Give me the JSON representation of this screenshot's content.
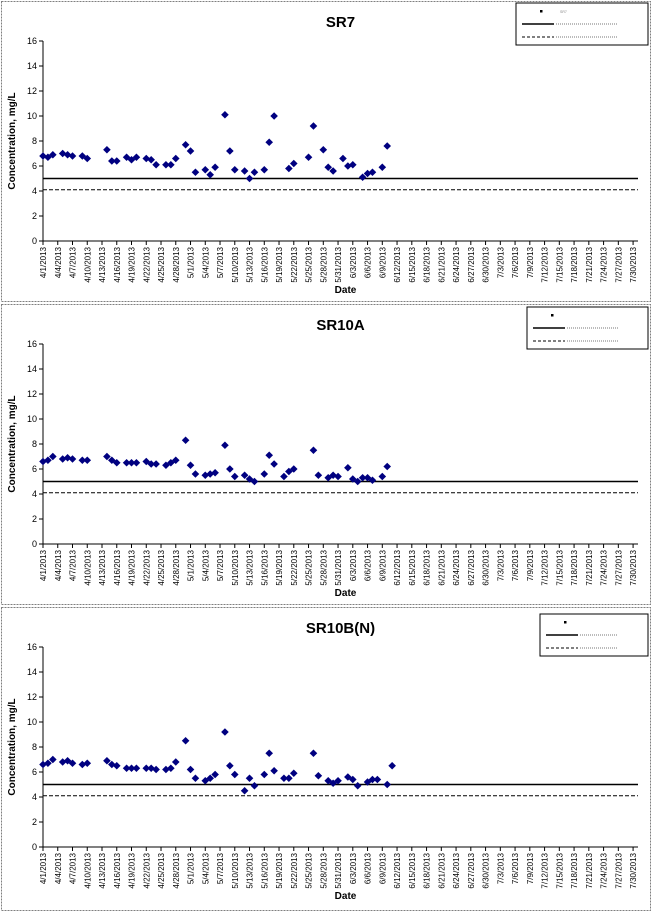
{
  "chart_data": [
    {
      "type": "scatter",
      "title": "SR7",
      "xlabel": "Date",
      "ylabel": "Concentration, mg/L",
      "ylim": [
        0,
        16
      ],
      "yticks": [
        "0",
        "2",
        "4",
        "6",
        "8",
        "10",
        "12",
        "14",
        "16"
      ],
      "grid": false,
      "legend": "top-right",
      "xticks": [
        "4/1/2013",
        "4/4/2013",
        "4/7/2013",
        "4/10/2013",
        "4/13/2013",
        "4/16/2013",
        "4/19/2013",
        "4/22/2013",
        "4/25/2013",
        "4/28/2013",
        "5/1/2013",
        "5/4/2013",
        "5/7/2013",
        "5/10/2013",
        "5/13/2013",
        "5/16/2013",
        "5/19/2013",
        "5/22/2013",
        "5/25/2013",
        "5/28/2013",
        "5/31/2013",
        "6/3/2013",
        "6/6/2013",
        "6/9/2013",
        "6/12/2013",
        "6/15/2013",
        "6/18/2013",
        "6/21/2013",
        "6/24/2013",
        "6/27/2013",
        "6/30/2013",
        "7/3/2013",
        "7/6/2013",
        "7/9/2013",
        "7/12/2013",
        "7/15/2013",
        "7/18/2013",
        "7/21/2013",
        "7/24/2013",
        "7/27/2013",
        "7/30/2013"
      ],
      "x_start": "4/1/2013",
      "x_end": "7/31/2013",
      "points": [
        [
          "4/1/2013",
          6.8
        ],
        [
          "4/2/2013",
          6.7
        ],
        [
          "4/3/2013",
          6.9
        ],
        [
          "4/5/2013",
          7.0
        ],
        [
          "4/6/2013",
          6.9
        ],
        [
          "4/7/2013",
          6.8
        ],
        [
          "4/9/2013",
          6.8
        ],
        [
          "4/10/2013",
          6.6
        ],
        [
          "4/14/2013",
          7.3
        ],
        [
          "4/15/2013",
          6.4
        ],
        [
          "4/16/2013",
          6.4
        ],
        [
          "4/18/2013",
          6.7
        ],
        [
          "4/19/2013",
          6.5
        ],
        [
          "4/20/2013",
          6.7
        ],
        [
          "4/22/2013",
          6.6
        ],
        [
          "4/23/2013",
          6.5
        ],
        [
          "4/24/2013",
          6.1
        ],
        [
          "4/26/2013",
          6.1
        ],
        [
          "4/27/2013",
          6.1
        ],
        [
          "4/28/2013",
          6.6
        ],
        [
          "4/30/2013",
          7.7
        ],
        [
          "5/1/2013",
          7.2
        ],
        [
          "5/2/2013",
          5.5
        ],
        [
          "5/4/2013",
          5.7
        ],
        [
          "5/5/2013",
          5.3
        ],
        [
          "5/6/2013",
          5.9
        ],
        [
          "5/8/2013",
          10.1
        ],
        [
          "5/9/2013",
          7.2
        ],
        [
          "5/10/2013",
          5.7
        ],
        [
          "5/12/2013",
          5.6
        ],
        [
          "5/13/2013",
          5.0
        ],
        [
          "5/14/2013",
          5.5
        ],
        [
          "5/16/2013",
          5.7
        ],
        [
          "5/17/2013",
          7.9
        ],
        [
          "5/18/2013",
          10.0
        ],
        [
          "5/21/2013",
          5.8
        ],
        [
          "5/22/2013",
          6.2
        ],
        [
          "5/25/2013",
          6.7
        ],
        [
          "5/26/2013",
          9.2
        ],
        [
          "5/28/2013",
          7.3
        ],
        [
          "5/29/2013",
          5.9
        ],
        [
          "5/30/2013",
          5.6
        ],
        [
          "6/1/2013",
          6.6
        ],
        [
          "6/2/2013",
          6.0
        ],
        [
          "6/3/2013",
          6.1
        ],
        [
          "6/5/2013",
          5.1
        ],
        [
          "6/6/2013",
          5.4
        ],
        [
          "6/7/2013",
          5.5
        ],
        [
          "6/9/2013",
          5.9
        ],
        [
          "6/10/2013",
          7.6
        ]
      ],
      "line_solid": 5.0,
      "line_dashed": 4.1,
      "legend_items": [
        "SR7",
        "",
        ""
      ]
    },
    {
      "type": "scatter",
      "title": "SR10A",
      "xlabel": "Date",
      "ylabel": "Concentration, mg/L",
      "ylim": [
        0,
        16
      ],
      "yticks": [
        "0",
        "2",
        "4",
        "6",
        "8",
        "10",
        "12",
        "14",
        "16"
      ],
      "grid": false,
      "legend": "top-right",
      "xticks": [
        "4/1/2013",
        "4/4/2013",
        "4/7/2013",
        "4/10/2013",
        "4/13/2013",
        "4/16/2013",
        "4/19/2013",
        "4/22/2013",
        "4/25/2013",
        "4/28/2013",
        "5/1/2013",
        "5/4/2013",
        "5/7/2013",
        "5/10/2013",
        "5/13/2013",
        "5/16/2013",
        "5/19/2013",
        "5/22/2013",
        "5/25/2013",
        "5/28/2013",
        "5/31/2013",
        "6/3/2013",
        "6/6/2013",
        "6/9/2013",
        "6/12/2013",
        "6/15/2013",
        "6/18/2013",
        "6/21/2013",
        "6/24/2013",
        "6/27/2013",
        "6/30/2013",
        "7/3/2013",
        "7/6/2013",
        "7/9/2013",
        "7/12/2013",
        "7/15/2013",
        "7/18/2013",
        "7/21/2013",
        "7/24/2013",
        "7/27/2013",
        "7/30/2013"
      ],
      "x_start": "4/1/2013",
      "x_end": "7/31/2013",
      "points": [
        [
          "4/1/2013",
          6.6
        ],
        [
          "4/2/2013",
          6.7
        ],
        [
          "4/3/2013",
          7.0
        ],
        [
          "4/5/2013",
          6.8
        ],
        [
          "4/6/2013",
          6.9
        ],
        [
          "4/7/2013",
          6.8
        ],
        [
          "4/9/2013",
          6.7
        ],
        [
          "4/10/2013",
          6.7
        ],
        [
          "4/14/2013",
          7.0
        ],
        [
          "4/15/2013",
          6.7
        ],
        [
          "4/16/2013",
          6.5
        ],
        [
          "4/18/2013",
          6.5
        ],
        [
          "4/19/2013",
          6.5
        ],
        [
          "4/20/2013",
          6.5
        ],
        [
          "4/22/2013",
          6.6
        ],
        [
          "4/23/2013",
          6.4
        ],
        [
          "4/24/2013",
          6.4
        ],
        [
          "4/26/2013",
          6.3
        ],
        [
          "4/27/2013",
          6.5
        ],
        [
          "4/28/2013",
          6.7
        ],
        [
          "4/30/2013",
          8.3
        ],
        [
          "5/1/2013",
          6.3
        ],
        [
          "5/2/2013",
          5.6
        ],
        [
          "5/4/2013",
          5.5
        ],
        [
          "5/5/2013",
          5.6
        ],
        [
          "5/6/2013",
          5.7
        ],
        [
          "5/8/2013",
          7.9
        ],
        [
          "5/9/2013",
          6.0
        ],
        [
          "5/10/2013",
          5.4
        ],
        [
          "5/12/2013",
          5.5
        ],
        [
          "5/13/2013",
          5.2
        ],
        [
          "5/14/2013",
          5.0
        ],
        [
          "5/16/2013",
          5.6
        ],
        [
          "5/17/2013",
          7.1
        ],
        [
          "5/18/2013",
          6.4
        ],
        [
          "5/20/2013",
          5.4
        ],
        [
          "5/21/2013",
          5.8
        ],
        [
          "5/22/2013",
          6.0
        ],
        [
          "5/26/2013",
          7.5
        ],
        [
          "5/27/2013",
          5.5
        ],
        [
          "5/29/2013",
          5.3
        ],
        [
          "5/30/2013",
          5.5
        ],
        [
          "5/31/2013",
          5.4
        ],
        [
          "6/2/2013",
          6.1
        ],
        [
          "6/3/2013",
          5.2
        ],
        [
          "6/4/2013",
          5.0
        ],
        [
          "6/5/2013",
          5.3
        ],
        [
          "6/6/2013",
          5.3
        ],
        [
          "6/7/2013",
          5.1
        ],
        [
          "6/9/2013",
          5.4
        ],
        [
          "6/10/2013",
          6.2
        ]
      ],
      "line_solid": 5.0,
      "line_dashed": 4.1,
      "legend_items": [
        "",
        "",
        ""
      ]
    },
    {
      "type": "scatter",
      "title": "SR10B(N)",
      "xlabel": "Date",
      "ylabel": "Concentration, mg/L",
      "ylim": [
        0,
        16
      ],
      "yticks": [
        "0",
        "2",
        "4",
        "6",
        "8",
        "10",
        "12",
        "14",
        "16"
      ],
      "grid": false,
      "legend": "top-right",
      "xticks": [
        "4/1/2013",
        "4/4/2013",
        "4/7/2013",
        "4/10/2013",
        "4/13/2013",
        "4/16/2013",
        "4/19/2013",
        "4/22/2013",
        "4/25/2013",
        "4/28/2013",
        "5/1/2013",
        "5/4/2013",
        "5/7/2013",
        "5/10/2013",
        "5/13/2013",
        "5/16/2013",
        "5/19/2013",
        "5/22/2013",
        "5/25/2013",
        "5/28/2013",
        "5/31/2013",
        "6/3/2013",
        "6/6/2013",
        "6/9/2013",
        "6/12/2013",
        "6/15/2013",
        "6/18/2013",
        "6/21/2013",
        "6/24/2013",
        "6/27/2013",
        "6/30/2013",
        "7/3/2013",
        "7/6/2013",
        "7/9/2013",
        "7/12/2013",
        "7/15/2013",
        "7/18/2013",
        "7/21/2013",
        "7/24/2013",
        "7/27/2013",
        "7/30/2013"
      ],
      "x_start": "4/1/2013",
      "x_end": "7/31/2013",
      "points": [
        [
          "4/1/2013",
          6.6
        ],
        [
          "4/2/2013",
          6.7
        ],
        [
          "4/3/2013",
          7.0
        ],
        [
          "4/5/2013",
          6.8
        ],
        [
          "4/6/2013",
          6.9
        ],
        [
          "4/7/2013",
          6.7
        ],
        [
          "4/9/2013",
          6.6
        ],
        [
          "4/10/2013",
          6.7
        ],
        [
          "4/14/2013",
          6.9
        ],
        [
          "4/15/2013",
          6.6
        ],
        [
          "4/16/2013",
          6.5
        ],
        [
          "4/18/2013",
          6.3
        ],
        [
          "4/19/2013",
          6.3
        ],
        [
          "4/20/2013",
          6.3
        ],
        [
          "4/22/2013",
          6.3
        ],
        [
          "4/23/2013",
          6.3
        ],
        [
          "4/24/2013",
          6.2
        ],
        [
          "4/26/2013",
          6.2
        ],
        [
          "4/27/2013",
          6.3
        ],
        [
          "4/28/2013",
          6.8
        ],
        [
          "4/30/2013",
          8.5
        ],
        [
          "5/1/2013",
          6.2
        ],
        [
          "5/2/2013",
          5.5
        ],
        [
          "5/4/2013",
          5.3
        ],
        [
          "5/5/2013",
          5.5
        ],
        [
          "5/6/2013",
          5.8
        ],
        [
          "5/8/2013",
          9.2
        ],
        [
          "5/9/2013",
          6.5
        ],
        [
          "5/10/2013",
          5.8
        ],
        [
          "5/12/2013",
          4.5
        ],
        [
          "5/13/2013",
          5.5
        ],
        [
          "5/14/2013",
          4.9
        ],
        [
          "5/16/2013",
          5.8
        ],
        [
          "5/17/2013",
          7.5
        ],
        [
          "5/18/2013",
          6.1
        ],
        [
          "5/20/2013",
          5.5
        ],
        [
          "5/21/2013",
          5.5
        ],
        [
          "5/22/2013",
          5.9
        ],
        [
          "5/26/2013",
          7.5
        ],
        [
          "5/27/2013",
          5.7
        ],
        [
          "5/29/2013",
          5.3
        ],
        [
          "5/30/2013",
          5.1
        ],
        [
          "5/31/2013",
          5.3
        ],
        [
          "6/2/2013",
          5.6
        ],
        [
          "6/3/2013",
          5.4
        ],
        [
          "6/4/2013",
          4.9
        ],
        [
          "6/6/2013",
          5.2
        ],
        [
          "6/7/2013",
          5.4
        ],
        [
          "6/8/2013",
          5.4
        ],
        [
          "6/10/2013",
          5.0
        ],
        [
          "6/11/2013",
          6.5
        ]
      ],
      "line_solid": 5.0,
      "line_dashed": 4.1,
      "legend_items": [
        "",
        "",
        ""
      ]
    }
  ],
  "colors": {
    "marker": "#000080",
    "axis": "#000000",
    "frame": "#7f7f7f"
  }
}
